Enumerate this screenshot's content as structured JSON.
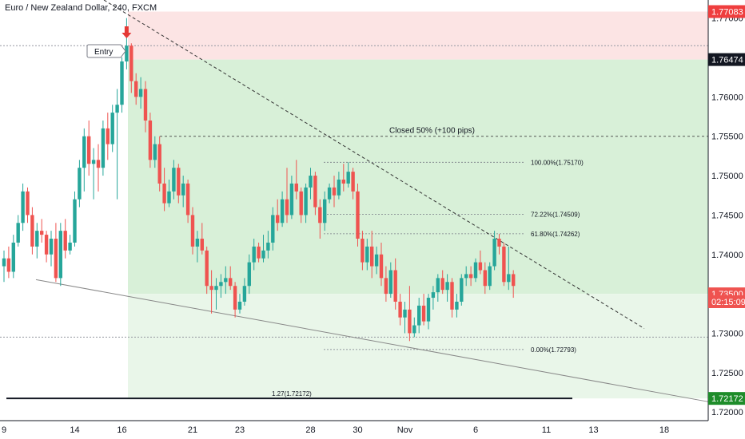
{
  "title": "Euro / New Zealand Dollar, 240, FXCM",
  "chart_data": {
    "type": "candlestick",
    "x_ticks": [
      {
        "label": "9",
        "i": 0
      },
      {
        "label": "14",
        "i": 15
      },
      {
        "label": "16",
        "i": 25
      },
      {
        "label": "21",
        "i": 40
      },
      {
        "label": "23",
        "i": 50
      },
      {
        "label": "28",
        "i": 65
      },
      {
        "label": "30",
        "i": 75
      },
      {
        "label": "Nov",
        "i": 85
      },
      {
        "label": "6",
        "i": 100
      },
      {
        "label": "11",
        "i": 115
      },
      {
        "label": "13",
        "i": 125
      },
      {
        "label": "18",
        "i": 140
      }
    ],
    "y_ticks": [
      "1.77000",
      "1.76000",
      "1.75500",
      "1.75000",
      "1.74500",
      "1.74000",
      "1.73000",
      "1.72500",
      "1.72000"
    ],
    "ylim": [
      1.7189,
      1.7723
    ],
    "grid": false,
    "candles": [
      [
        1.7385,
        1.7405,
        1.7365,
        1.7395
      ],
      [
        1.7395,
        1.741,
        1.737,
        1.7378
      ],
      [
        1.7378,
        1.7425,
        1.737,
        1.7415
      ],
      [
        1.7415,
        1.745,
        1.741,
        1.744
      ],
      [
        1.744,
        1.749,
        1.743,
        1.748
      ],
      [
        1.748,
        1.7485,
        1.744,
        1.745
      ],
      [
        1.745,
        1.746,
        1.74,
        1.741
      ],
      [
        1.741,
        1.744,
        1.7395,
        1.743
      ],
      [
        1.743,
        1.7445,
        1.7415,
        1.7425
      ],
      [
        1.7425,
        1.743,
        1.739,
        1.74
      ],
      [
        1.74,
        1.743,
        1.7385,
        1.742
      ],
      [
        1.742,
        1.744,
        1.7365,
        1.737
      ],
      [
        1.737,
        1.744,
        1.736,
        1.743
      ],
      [
        1.743,
        1.7445,
        1.7395,
        1.7405
      ],
      [
        1.7405,
        1.7425,
        1.74,
        1.7415
      ],
      [
        1.7415,
        1.748,
        1.741,
        1.747
      ],
      [
        1.747,
        1.752,
        1.746,
        1.751
      ],
      [
        1.751,
        1.756,
        1.748,
        1.755
      ],
      [
        1.755,
        1.757,
        1.75,
        1.7515
      ],
      [
        1.7515,
        1.7535,
        1.747,
        1.752
      ],
      [
        1.752,
        1.754,
        1.748,
        1.751
      ],
      [
        1.751,
        1.757,
        1.75,
        1.756
      ],
      [
        1.756,
        1.758,
        1.752,
        1.754
      ],
      [
        1.754,
        1.759,
        1.753,
        1.758
      ],
      [
        1.758,
        1.761,
        1.747,
        1.759
      ],
      [
        1.759,
        1.765,
        1.758,
        1.7645
      ],
      [
        1.7645,
        1.77,
        1.7635,
        1.7665
      ],
      [
        1.7665,
        1.7668,
        1.7605,
        1.762
      ],
      [
        1.762,
        1.763,
        1.759,
        1.76
      ],
      [
        1.76,
        1.7625,
        1.7585,
        1.761
      ],
      [
        1.761,
        1.762,
        1.7555,
        1.757
      ],
      [
        1.757,
        1.758,
        1.751,
        1.752
      ],
      [
        1.752,
        1.755,
        1.751,
        1.754
      ],
      [
        1.754,
        1.755,
        1.748,
        1.749
      ],
      [
        1.749,
        1.751,
        1.7455,
        1.7465
      ],
      [
        1.7465,
        1.7495,
        1.746,
        1.748
      ],
      [
        1.748,
        1.752,
        1.747,
        1.751
      ],
      [
        1.751,
        1.7515,
        1.7465,
        1.7475
      ],
      [
        1.7475,
        1.75,
        1.746,
        1.749
      ],
      [
        1.749,
        1.7495,
        1.744,
        1.745
      ],
      [
        1.745,
        1.746,
        1.74,
        1.741
      ],
      [
        1.741,
        1.743,
        1.739,
        1.742
      ],
      [
        1.742,
        1.744,
        1.74,
        1.7405
      ],
      [
        1.7405,
        1.741,
        1.735,
        1.736
      ],
      [
        1.736,
        1.738,
        1.7325,
        1.7355
      ],
      [
        1.7355,
        1.737,
        1.733,
        1.736
      ],
      [
        1.736,
        1.7375,
        1.7345,
        1.7365
      ],
      [
        1.7365,
        1.7385,
        1.735,
        1.737
      ],
      [
        1.737,
        1.7385,
        1.7355,
        1.736
      ],
      [
        1.736,
        1.7365,
        1.732,
        1.733
      ],
      [
        1.733,
        1.735,
        1.7325,
        1.734
      ],
      [
        1.734,
        1.737,
        1.7335,
        1.736
      ],
      [
        1.736,
        1.74,
        1.735,
        1.739
      ],
      [
        1.739,
        1.742,
        1.738,
        1.741
      ],
      [
        1.741,
        1.7415,
        1.739,
        1.7395
      ],
      [
        1.7395,
        1.7425,
        1.739,
        1.7405
      ],
      [
        1.7405,
        1.743,
        1.7395,
        1.7415
      ],
      [
        1.7415,
        1.746,
        1.7405,
        1.745
      ],
      [
        1.745,
        1.747,
        1.743,
        1.744
      ],
      [
        1.744,
        1.748,
        1.7435,
        1.747
      ],
      [
        1.747,
        1.751,
        1.744,
        1.745
      ],
      [
        1.745,
        1.75,
        1.7445,
        1.749
      ],
      [
        1.749,
        1.752,
        1.747,
        1.748
      ],
      [
        1.748,
        1.7485,
        1.744,
        1.745
      ],
      [
        1.745,
        1.749,
        1.744,
        1.7485
      ],
      [
        1.7485,
        1.751,
        1.747,
        1.75
      ],
      [
        1.75,
        1.7505,
        1.745,
        1.746
      ],
      [
        1.746,
        1.747,
        1.742,
        1.744
      ],
      [
        1.744,
        1.748,
        1.743,
        1.747
      ],
      [
        1.747,
        1.749,
        1.7465,
        1.7485
      ],
      [
        1.7485,
        1.75,
        1.746,
        1.7475
      ],
      [
        1.7475,
        1.7505,
        1.747,
        1.7495
      ],
      [
        1.7495,
        1.7515,
        1.748,
        1.749
      ],
      [
        1.749,
        1.7517,
        1.7485,
        1.7505
      ],
      [
        1.7505,
        1.751,
        1.747,
        1.748
      ],
      [
        1.748,
        1.749,
        1.741,
        1.742
      ],
      [
        1.742,
        1.743,
        1.738,
        1.739
      ],
      [
        1.739,
        1.742,
        1.738,
        1.741
      ],
      [
        1.741,
        1.743,
        1.737,
        1.7385
      ],
      [
        1.7385,
        1.741,
        1.7375,
        1.74
      ],
      [
        1.74,
        1.7415,
        1.736,
        1.737
      ],
      [
        1.737,
        1.7385,
        1.734,
        1.735
      ],
      [
        1.735,
        1.739,
        1.7345,
        1.738
      ],
      [
        1.738,
        1.7395,
        1.733,
        1.734
      ],
      [
        1.734,
        1.735,
        1.731,
        1.732
      ],
      [
        1.732,
        1.734,
        1.73,
        1.733
      ],
      [
        1.733,
        1.736,
        1.729,
        1.73
      ],
      [
        1.73,
        1.732,
        1.7295,
        1.731
      ],
      [
        1.731,
        1.7345,
        1.73,
        1.7335
      ],
      [
        1.7335,
        1.735,
        1.731,
        1.7315
      ],
      [
        1.7315,
        1.735,
        1.7305,
        1.7345
      ],
      [
        1.7345,
        1.736,
        1.733,
        1.7352
      ],
      [
        1.7352,
        1.7375,
        1.734,
        1.737
      ],
      [
        1.737,
        1.738,
        1.735,
        1.7355
      ],
      [
        1.7355,
        1.7375,
        1.734,
        1.7365
      ],
      [
        1.7365,
        1.737,
        1.732,
        1.733
      ],
      [
        1.733,
        1.735,
        1.732,
        1.734
      ],
      [
        1.734,
        1.7375,
        1.7335,
        1.737
      ],
      [
        1.737,
        1.7385,
        1.736,
        1.7375
      ],
      [
        1.7375,
        1.7385,
        1.736,
        1.737
      ],
      [
        1.737,
        1.7395,
        1.7365,
        1.739
      ],
      [
        1.739,
        1.7405,
        1.7375,
        1.738
      ],
      [
        1.738,
        1.739,
        1.735,
        1.736
      ],
      [
        1.736,
        1.739,
        1.7355,
        1.7385
      ],
      [
        1.7385,
        1.743,
        1.738,
        1.742
      ],
      [
        1.742,
        1.7426,
        1.74,
        1.741
      ],
      [
        1.741,
        1.7415,
        1.736,
        1.7365
      ],
      [
        1.7365,
        1.741,
        1.7355,
        1.7375
      ],
      [
        1.7375,
        1.738,
        1.7345,
        1.736
      ]
    ],
    "colors": {
      "up": "#26a69a",
      "down": "#ef5350",
      "stop_zone": "#fce4e4",
      "target_zone": "#d8f0d8",
      "extended_zone": "#e9f6e9"
    },
    "annotations": {
      "entry_label": "Entry",
      "closed_label": "Closed 50% (+100 pips)",
      "fib_100": "100.00%(1.75170)",
      "fib_722": "72.22%(1.74509)",
      "fib_618": "61.80%(1.74262)",
      "fib_0": "0.00%(1.72793)",
      "ext_127": "1.27(1.72172)"
    },
    "price_tags": [
      {
        "label": "1.77083",
        "price": 1.77083,
        "bg": "#ef3e3e",
        "fg": "#ffffff"
      },
      {
        "label": "1.76474",
        "price": 1.76474,
        "bg": "#131722",
        "fg": "#ffffff"
      },
      {
        "label": "1.73500",
        "price": 1.735,
        "bg": "#ef5350",
        "fg": "#ffffff"
      },
      {
        "label": "02:15:09",
        "price": 1.734,
        "bg": "#ef5350",
        "fg": "#ffffff"
      },
      {
        "label": "1.72172",
        "price": 1.72172,
        "bg": "#1e8c2a",
        "fg": "#ffffff"
      }
    ]
  }
}
